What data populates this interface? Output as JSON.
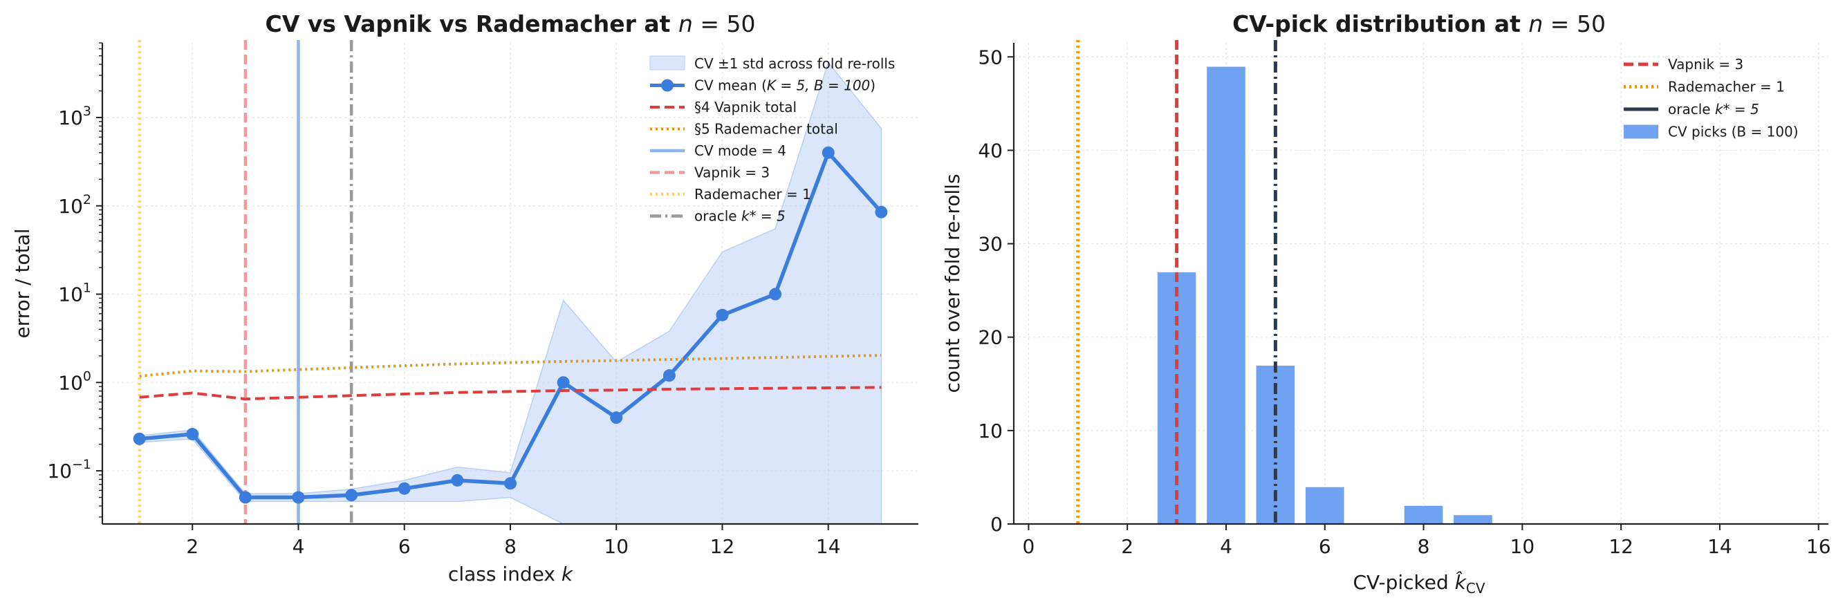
{
  "chart_data": [
    {
      "type": "line",
      "title": "CV vs Vapnik vs Rademacher at",
      "title_math": "n = 50",
      "xlabel": "class index",
      "xlabel_math": "k",
      "ylabel": "error / total",
      "yscale": "log",
      "xlim": [
        0.3,
        15.7
      ],
      "ylim": [
        0.025,
        7000
      ],
      "xticks": [
        2,
        4,
        6,
        8,
        10,
        12,
        14
      ],
      "yticks": [
        {
          "value": 0.1,
          "base": "10",
          "exp": "−1"
        },
        {
          "value": 1,
          "base": "10",
          "exp": "0"
        },
        {
          "value": 10,
          "base": "10",
          "exp": "1"
        },
        {
          "value": 100,
          "base": "10",
          "exp": "2"
        },
        {
          "value": 1000,
          "base": "10",
          "exp": "3"
        }
      ],
      "grid": true,
      "legend_position": "top-right",
      "x": [
        1,
        2,
        3,
        4,
        5,
        6,
        7,
        8,
        9,
        10,
        11,
        12,
        13,
        14,
        15
      ],
      "series": [
        {
          "name": "CV mean (K = 5, B = 100)",
          "values": [
            0.23,
            0.26,
            0.05,
            0.05,
            0.053,
            0.063,
            0.078,
            0.072,
            1.0,
            0.4,
            1.2,
            5.8,
            10.0,
            400,
            85
          ],
          "color": "#3b7ddd",
          "style": "solid-markers"
        },
        {
          "name": "§4 Vapnik total",
          "values": [
            0.68,
            0.76,
            0.65,
            0.68,
            0.71,
            0.74,
            0.77,
            0.79,
            0.81,
            0.82,
            0.84,
            0.85,
            0.86,
            0.87,
            0.88
          ],
          "color": "#e03c3c",
          "style": "dashed"
        },
        {
          "name": "§5 Rademacher total",
          "values": [
            1.18,
            1.35,
            1.33,
            1.4,
            1.47,
            1.55,
            1.62,
            1.68,
            1.73,
            1.77,
            1.82,
            1.87,
            1.92,
            1.97,
            2.03
          ],
          "color": "#f0940a",
          "style": "dotted"
        }
      ],
      "band": {
        "name": "CV ±1 std across fold re-rolls",
        "color": "#b7cef5",
        "upper": [
          0.25,
          0.29,
          0.055,
          0.055,
          0.062,
          0.078,
          0.11,
          0.095,
          8.5,
          1.7,
          3.8,
          30,
          55,
          4200,
          750
        ],
        "lower": [
          0.21,
          0.23,
          0.045,
          0.045,
          0.045,
          0.045,
          0.045,
          0.05,
          0.025,
          0.025,
          0.025,
          0.025,
          0.025,
          0.025,
          0.025
        ]
      },
      "vlines": [
        {
          "name": "CV mode = 4",
          "x": 4,
          "color": "#8fb4ee",
          "style": "solid"
        },
        {
          "name": "Vapnik = 3",
          "x": 3,
          "color": "#f29a9a",
          "style": "dashed"
        },
        {
          "name": "Rademacher = 1",
          "x": 1,
          "color": "#f8cf7a",
          "style": "dotted"
        },
        {
          "name": "oracle",
          "name_math": "k* = 5",
          "x": 5,
          "color": "#9a9a9a",
          "style": "dashdot"
        }
      ],
      "legend": [
        {
          "label": "CV ±1 std across fold re-rolls",
          "kind": "patch"
        },
        {
          "label": "CV mean (",
          "math": "K = 5, B = 100",
          "tail": ")",
          "kind": "line-marker"
        },
        {
          "label": "§4 Vapnik total",
          "kind": "dashed"
        },
        {
          "label": "§5 Rademacher total",
          "kind": "dotted"
        },
        {
          "label": "CV mode = 4",
          "kind": "vline-solid"
        },
        {
          "label": "Vapnik = 3",
          "kind": "vline-dashed"
        },
        {
          "label": "Rademacher = 1",
          "kind": "vline-dotted"
        },
        {
          "label": "oracle ",
          "math": "k* = 5",
          "kind": "vline-dashdot"
        }
      ]
    },
    {
      "type": "bar",
      "title": "CV-pick distribution at",
      "title_math": "n = 50",
      "xlabel": "CV-picked",
      "xlabel_math": "k̂CV",
      "ylabel": "count over fold re-rolls",
      "xlim": [
        -0.3,
        16.2
      ],
      "ylim": [
        0,
        51.5
      ],
      "xticks": [
        0,
        2,
        4,
        6,
        8,
        10,
        12,
        14,
        16
      ],
      "yticks": [
        0,
        10,
        20,
        30,
        40,
        50
      ],
      "grid": true,
      "legend_position": "top-right",
      "categories": [
        3,
        4,
        5,
        6,
        8,
        9
      ],
      "values": [
        27,
        49,
        17,
        4,
        2,
        1
      ],
      "bar_color": "#6fa3f2",
      "vlines": [
        {
          "name": "Vapnik = 3",
          "x": 3,
          "color": "#e03c3c",
          "style": "dashed"
        },
        {
          "name": "Rademacher = 1",
          "x": 1,
          "color": "#f0940a",
          "style": "dotted"
        },
        {
          "name": "oracle",
          "name_math": "k* = 5",
          "x": 5,
          "color": "#2e3a4f",
          "style": "dashdot"
        }
      ],
      "legend": [
        {
          "label": "Vapnik = 3",
          "kind": "dashed-red"
        },
        {
          "label": "Rademacher = 1",
          "kind": "dotted-orange"
        },
        {
          "label": "oracle ",
          "math": "k* = 5",
          "kind": "dashdot-dark"
        },
        {
          "label": "CV picks (B = 100)",
          "kind": "patch-blue"
        }
      ]
    }
  ]
}
